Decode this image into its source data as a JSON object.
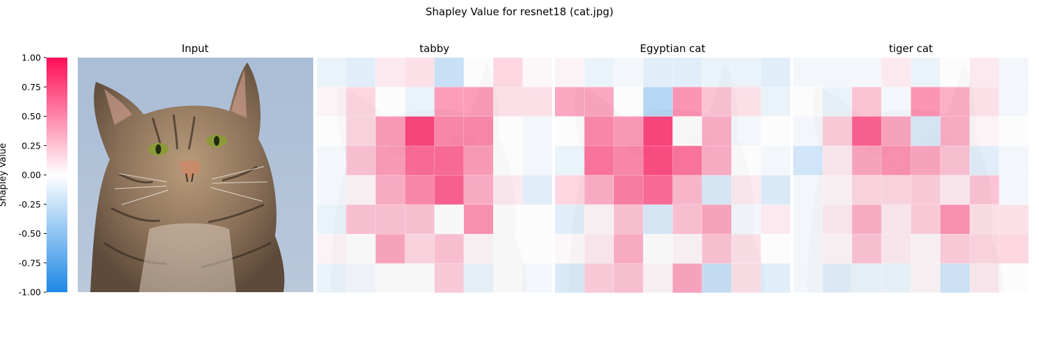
{
  "figure": {
    "title": "Shapley Value for resnet18 (cat.jpg)"
  },
  "colorbar": {
    "label": "Shapley Value",
    "vmin": -1.0,
    "vmax": 1.0,
    "ticks": [
      "1.00",
      "0.75",
      "0.50",
      "0.25",
      "0.00",
      "-0.25",
      "-0.50",
      "-0.75",
      "-1.00"
    ],
    "colors": {
      "negative": "#1e88e5",
      "zero": "#ffffff",
      "positive": "#ff0d57"
    }
  },
  "input_panel": {
    "title": "Input"
  },
  "chart_data": {
    "type": "heatmap",
    "grid": [
      8,
      8
    ],
    "vmin": -1.0,
    "vmax": 1.0,
    "panels": [
      {
        "title": "tabby",
        "values": [
          [
            -0.1,
            -0.15,
            0.1,
            0.15,
            -0.3,
            0.0,
            0.2,
            0.02
          ],
          [
            0.05,
            0.2,
            0.0,
            -0.1,
            0.5,
            0.5,
            0.15,
            0.15
          ],
          [
            0.0,
            0.2,
            0.5,
            0.95,
            0.6,
            0.6,
            0.0,
            -0.05
          ],
          [
            -0.05,
            0.3,
            0.5,
            0.75,
            0.75,
            0.5,
            0.0,
            -0.05
          ],
          [
            -0.05,
            0.05,
            0.4,
            0.6,
            0.8,
            0.4,
            0.1,
            -0.15
          ],
          [
            -0.1,
            0.3,
            0.3,
            0.3,
            0.0,
            0.55,
            0.0,
            0.0
          ],
          [
            0.05,
            0.0,
            0.45,
            0.2,
            0.3,
            0.05,
            0.0,
            0.0
          ],
          [
            -0.1,
            -0.05,
            0.0,
            0.0,
            0.25,
            -0.1,
            0.0,
            -0.05
          ]
        ]
      },
      {
        "title": "Egyptian cat",
        "values": [
          [
            0.05,
            -0.1,
            -0.05,
            -0.15,
            -0.15,
            -0.1,
            -0.1,
            -0.15
          ],
          [
            0.45,
            0.45,
            0.0,
            -0.4,
            0.55,
            0.3,
            0.15,
            -0.1
          ],
          [
            0.0,
            0.6,
            0.5,
            0.95,
            0.0,
            0.4,
            -0.05,
            0.0
          ],
          [
            -0.1,
            0.7,
            0.6,
            0.9,
            0.7,
            0.4,
            0.0,
            -0.05
          ],
          [
            0.2,
            0.4,
            0.65,
            0.75,
            0.35,
            -0.2,
            0.1,
            -0.2
          ],
          [
            -0.15,
            0.05,
            0.3,
            -0.2,
            0.3,
            0.45,
            -0.05,
            0.1
          ],
          [
            0.02,
            0.1,
            0.4,
            0.0,
            0.05,
            0.3,
            0.15,
            0.0
          ],
          [
            -0.2,
            0.25,
            0.3,
            0.05,
            0.45,
            -0.3,
            0.15,
            -0.15
          ]
        ]
      },
      {
        "title": "tiger cat",
        "values": [
          [
            -0.05,
            -0.05,
            -0.05,
            0.1,
            -0.1,
            0.0,
            0.1,
            -0.05
          ],
          [
            0.0,
            -0.1,
            0.3,
            -0.05,
            0.55,
            0.4,
            0.15,
            -0.05
          ],
          [
            -0.05,
            0.25,
            0.8,
            0.45,
            -0.2,
            0.4,
            0.05,
            0.0
          ],
          [
            -0.25,
            0.1,
            0.45,
            0.55,
            0.45,
            0.3,
            -0.15,
            -0.05
          ],
          [
            -0.05,
            0.05,
            0.2,
            0.2,
            0.25,
            0.1,
            0.3,
            -0.05
          ],
          [
            -0.05,
            0.1,
            0.4,
            0.1,
            0.25,
            0.55,
            0.15,
            0.15
          ],
          [
            -0.05,
            0.05,
            0.3,
            0.1,
            0.05,
            0.25,
            0.2,
            0.2
          ],
          [
            -0.05,
            -0.15,
            -0.1,
            -0.1,
            0.05,
            -0.25,
            0.1,
            0.0
          ]
        ]
      }
    ]
  }
}
